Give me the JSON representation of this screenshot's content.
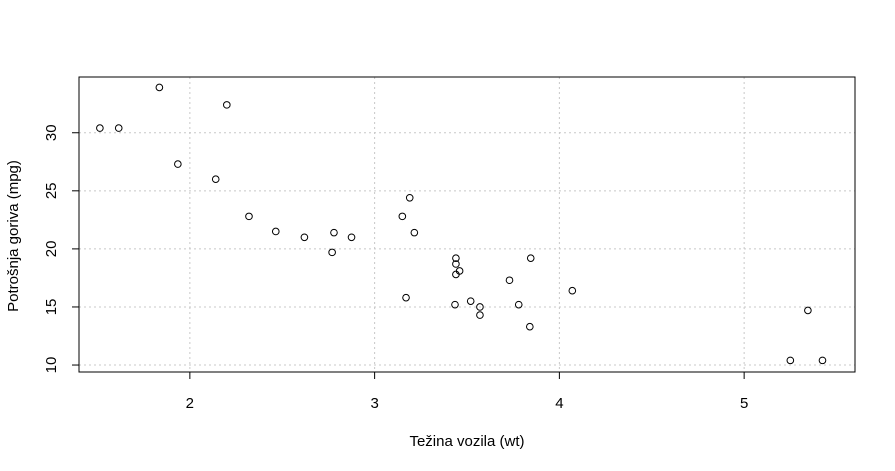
{
  "chart_data": {
    "type": "scatter",
    "title": "",
    "xlabel": "Težina vozila (wt)",
    "ylabel": "Potrošnja goriva (mpg)",
    "xlim": [
      1.4,
      5.6
    ],
    "ylim": [
      9.4,
      34.8
    ],
    "grid": true,
    "x_ticks": [
      2,
      3,
      4,
      5
    ],
    "y_ticks": [
      10,
      15,
      20,
      25,
      30
    ],
    "points": [
      {
        "x": 2.62,
        "y": 21.0
      },
      {
        "x": 2.875,
        "y": 21.0
      },
      {
        "x": 2.32,
        "y": 22.8
      },
      {
        "x": 3.215,
        "y": 21.4
      },
      {
        "x": 3.44,
        "y": 18.7
      },
      {
        "x": 3.46,
        "y": 18.1
      },
      {
        "x": 3.57,
        "y": 14.3
      },
      {
        "x": 3.19,
        "y": 24.4
      },
      {
        "x": 3.15,
        "y": 22.8
      },
      {
        "x": 3.44,
        "y": 19.2
      },
      {
        "x": 3.44,
        "y": 17.8
      },
      {
        "x": 4.07,
        "y": 16.4
      },
      {
        "x": 3.73,
        "y": 17.3
      },
      {
        "x": 3.78,
        "y": 15.2
      },
      {
        "x": 5.25,
        "y": 10.4
      },
      {
        "x": 5.424,
        "y": 10.4
      },
      {
        "x": 5.345,
        "y": 14.7
      },
      {
        "x": 2.2,
        "y": 32.4
      },
      {
        "x": 1.615,
        "y": 30.4
      },
      {
        "x": 1.835,
        "y": 33.9
      },
      {
        "x": 2.465,
        "y": 21.5
      },
      {
        "x": 3.52,
        "y": 15.5
      },
      {
        "x": 3.435,
        "y": 15.2
      },
      {
        "x": 3.84,
        "y": 13.3
      },
      {
        "x": 3.845,
        "y": 19.2
      },
      {
        "x": 1.935,
        "y": 27.3
      },
      {
        "x": 2.14,
        "y": 26.0
      },
      {
        "x": 1.513,
        "y": 30.4
      },
      {
        "x": 3.17,
        "y": 15.8
      },
      {
        "x": 2.77,
        "y": 19.7
      },
      {
        "x": 3.57,
        "y": 15.0
      },
      {
        "x": 2.78,
        "y": 21.4
      }
    ]
  }
}
